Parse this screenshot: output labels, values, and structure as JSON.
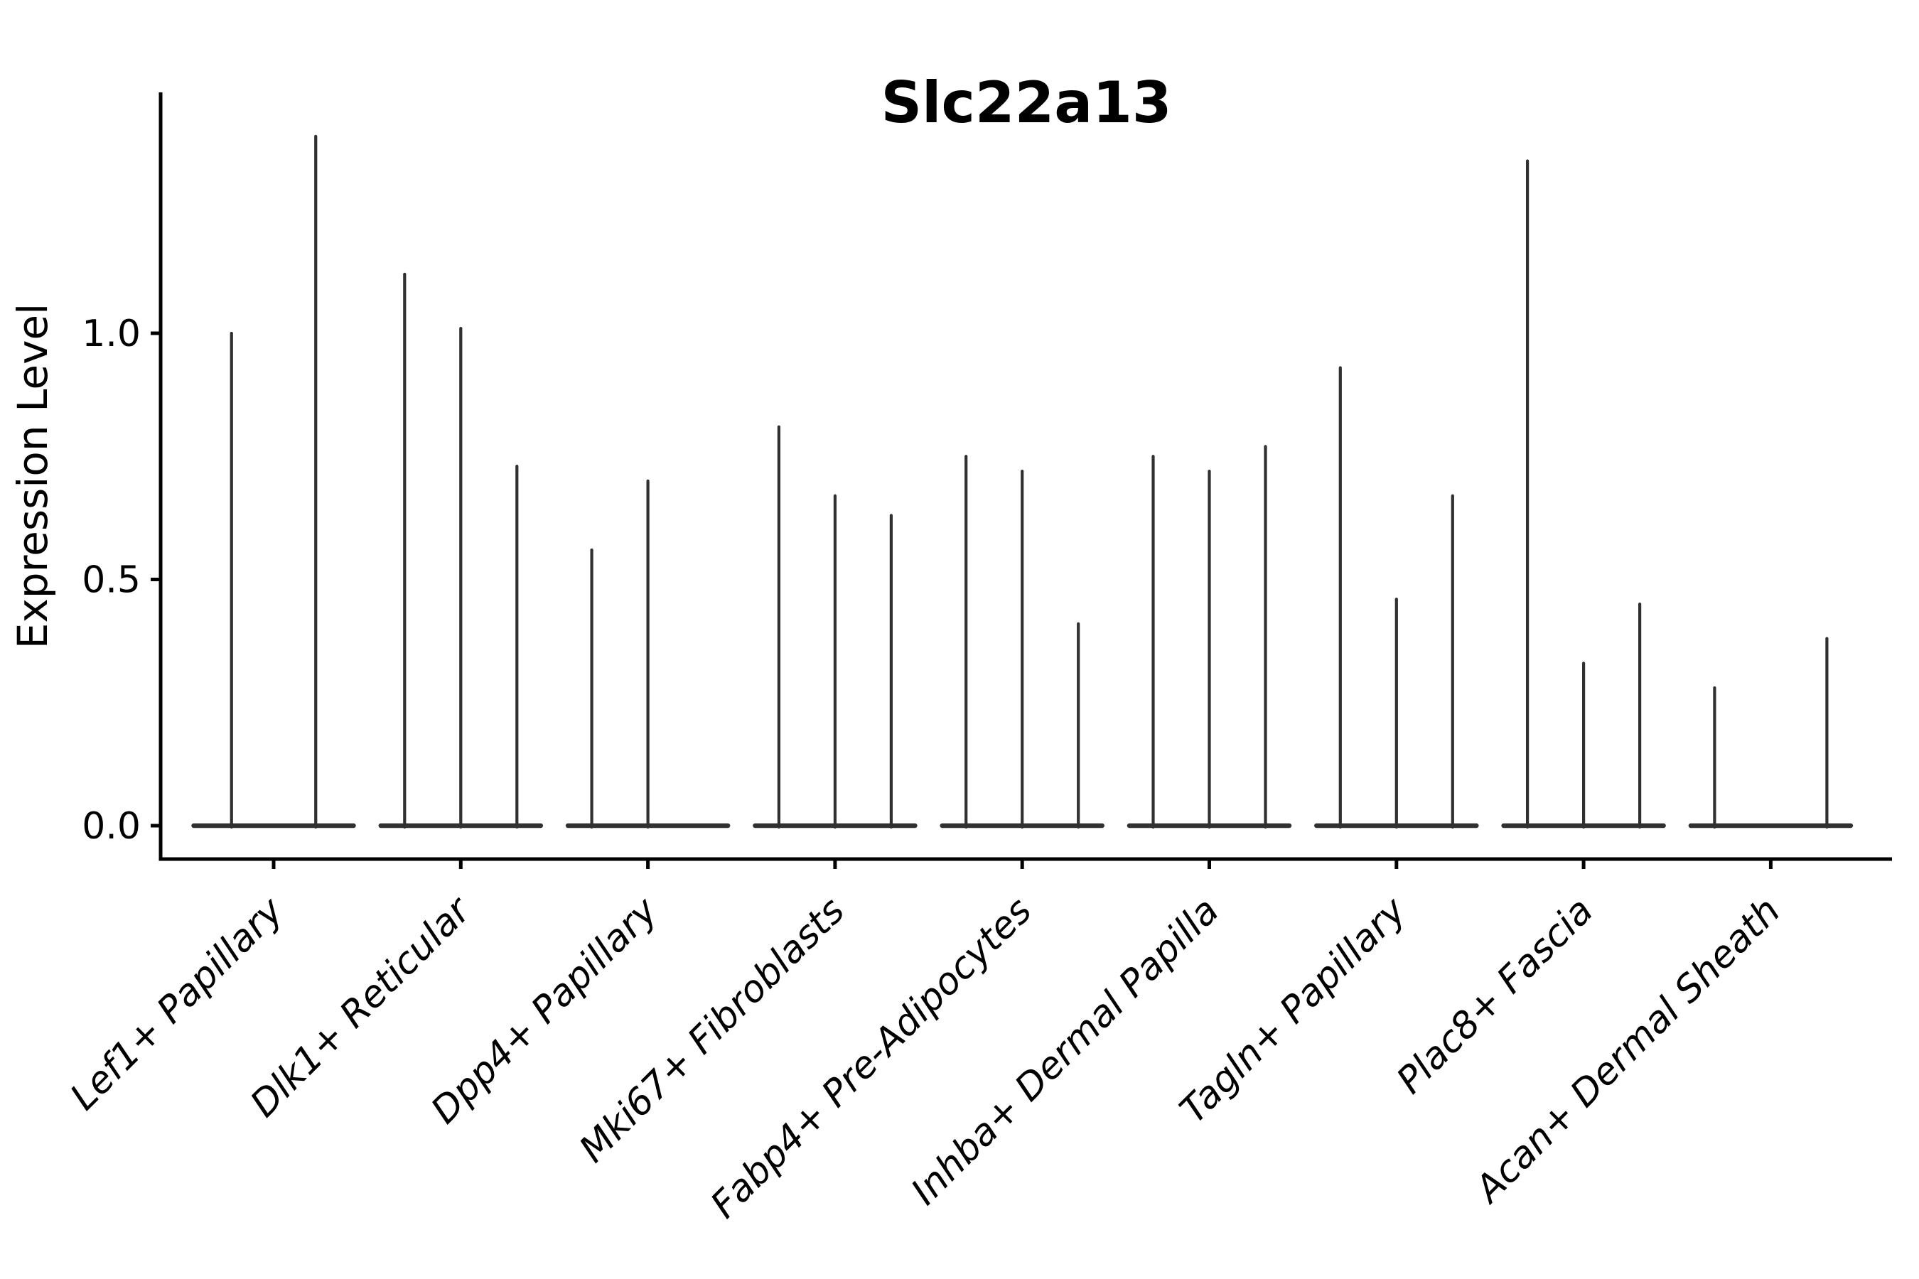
{
  "title": "Slc22a13",
  "chart_data": {
    "type": "violin",
    "title": "Slc22a13",
    "xlabel": "",
    "ylabel": "Expression Level",
    "categories": [
      "Lef1+ Papillary",
      "Dlk1+ Reticular",
      "Dpp4+ Papillary",
      "Mki67+ Fibroblasts",
      "Fabp4+ Pre-Adipocytes",
      "Inhba+ Dermal Papilla",
      "Tagln+ Papillary",
      "Plac8+ Fascia",
      "Acan+ Dermal Sheath"
    ],
    "y_ticks": [
      "0.0",
      "0.5",
      "1.0"
    ],
    "y_tick_values": [
      0.0,
      0.5,
      1.0
    ],
    "ylim": [
      -0.07,
      1.49
    ],
    "grid": false,
    "legend": "none",
    "series": [
      {
        "category": "Lef1+ Papillary",
        "violin_max_values": [
          1.0,
          1.4
        ]
      },
      {
        "category": "Dlk1+ Reticular",
        "violin_max_values": [
          1.12,
          1.01,
          0.73
        ]
      },
      {
        "category": "Dpp4+ Papillary",
        "violin_max_values": [
          0.56,
          0.7,
          0
        ]
      },
      {
        "category": "Mki67+ Fibroblasts",
        "violin_max_values": [
          0.81,
          0.67,
          0.63
        ]
      },
      {
        "category": "Fabp4+ Pre-Adipocytes",
        "violin_max_values": [
          0.75,
          0.72,
          0.41
        ]
      },
      {
        "category": "Inhba+ Dermal Papilla",
        "violin_max_values": [
          0.75,
          0.72,
          0.77
        ]
      },
      {
        "category": "Tagln+ Papillary",
        "violin_max_values": [
          0.93,
          0.46,
          0.67
        ]
      },
      {
        "category": "Plac8+ Fascia",
        "violin_max_values": [
          1.35,
          0.33,
          0.45
        ]
      },
      {
        "category": "Acan+ Dermal Sheath",
        "violin_max_values": [
          0.28,
          0,
          0.38
        ]
      }
    ],
    "style": {
      "violin_color": "#303030",
      "axis_color": "#000000",
      "background": "#ffffff",
      "x_label_rotation": 45,
      "x_labels_italic": true,
      "title_bold": true
    }
  }
}
